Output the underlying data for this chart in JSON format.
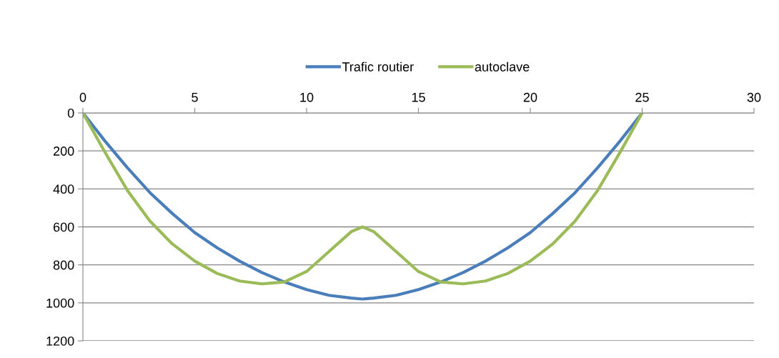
{
  "chart_data": {
    "type": "line",
    "x": [
      0,
      1,
      2,
      3,
      4,
      5,
      6,
      7,
      8,
      9,
      10,
      11,
      12,
      12.5,
      13,
      14,
      15,
      16,
      17,
      18,
      19,
      20,
      21,
      22,
      23,
      24,
      25
    ],
    "series": [
      {
        "name": "Trafic routier",
        "color": "#4a7ebb",
        "values": [
          0,
          150,
          290,
          420,
          530,
          630,
          710,
          780,
          840,
          890,
          930,
          960,
          975,
          980,
          975,
          960,
          930,
          890,
          840,
          780,
          710,
          630,
          530,
          420,
          290,
          150,
          0
        ]
      },
      {
        "name": "autoclave",
        "color": "#9bbb59",
        "values": [
          0,
          210,
          410,
          570,
          690,
          780,
          845,
          885,
          900,
          890,
          835,
          730,
          625,
          600,
          625,
          730,
          835,
          890,
          900,
          885,
          845,
          780,
          690,
          570,
          410,
          210,
          0
        ]
      }
    ],
    "xlim": [
      0,
      30
    ],
    "xticks": [
      0,
      5,
      10,
      15,
      20,
      25,
      30
    ],
    "ylim": [
      1200,
      0
    ],
    "yticks": [
      0,
      200,
      400,
      600,
      800,
      1000,
      1200
    ],
    "grid": "y",
    "legend": "top",
    "marker": "none",
    "line_style": "solid"
  }
}
